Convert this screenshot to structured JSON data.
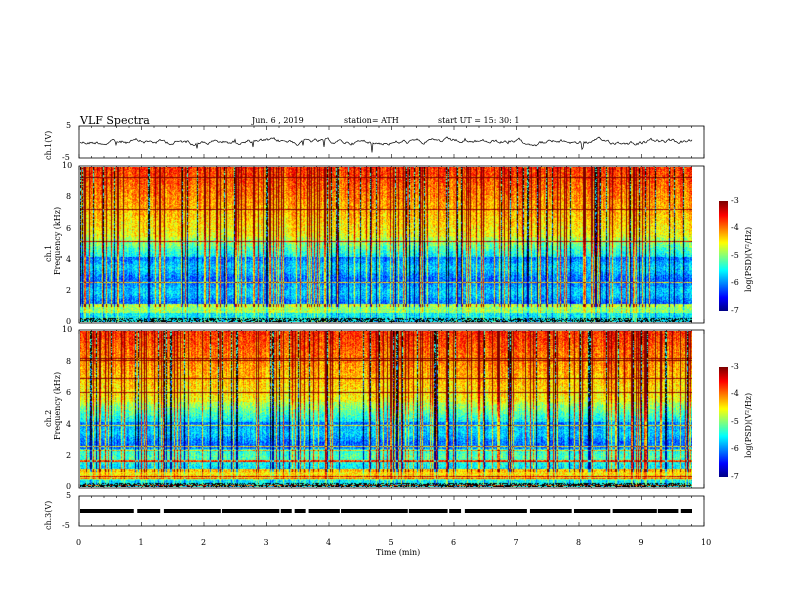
{
  "header": {
    "title": "VLF  Spectra",
    "date": "Jun. 6  , 2019",
    "station": "station= ATH",
    "start": "start  UT  =    15: 30: 1"
  },
  "chart_data": [
    {
      "type": "line",
      "panel": "ch1-waveform",
      "ylabel": "ch.1(V)",
      "yticks": [
        "5",
        "-5"
      ],
      "ylim": [
        -5,
        5
      ]
    },
    {
      "type": "heatmap",
      "panel": "ch1-spectrogram",
      "ylabel": "ch.1\nFrequency  (kHz)",
      "ylabel_line1": "ch.1",
      "ylabel_line2": "Frequency  (kHz)",
      "yticks": [
        "0",
        "2",
        "4",
        "6",
        "8",
        "10"
      ],
      "ylim": [
        0,
        10
      ],
      "xlim": [
        0,
        10
      ],
      "colorbar": {
        "label": "log(PSD)(V²/Hz)",
        "ticks": [
          "-3",
          "-4",
          "-5",
          "-6",
          "-7"
        ],
        "range": [
          -7,
          -3
        ]
      }
    },
    {
      "type": "heatmap",
      "panel": "ch2-spectrogram",
      "ylabel_line1": "ch.2",
      "ylabel_line2": "Frequency  (kHz)",
      "yticks": [
        "0",
        "2",
        "4",
        "6",
        "8",
        "10"
      ],
      "ylim": [
        0,
        10
      ],
      "xlim": [
        0,
        10
      ],
      "colorbar": {
        "label": "log(PSD)(V²/Hz)",
        "ticks": [
          "-3",
          "-4",
          "-5",
          "-6",
          "-7"
        ],
        "range": [
          -7,
          -3
        ]
      }
    },
    {
      "type": "line",
      "panel": "ch3-waveform",
      "ylabel": "ch.3(V)",
      "yticks": [
        "5",
        "-5"
      ],
      "ylim": [
        -5,
        5
      ]
    }
  ],
  "xaxis": {
    "label": "Time  (min)",
    "ticks": [
      "0",
      "1",
      "2",
      "3",
      "4",
      "5",
      "6",
      "7",
      "8",
      "9",
      "10"
    ],
    "range": [
      0,
      10
    ]
  }
}
